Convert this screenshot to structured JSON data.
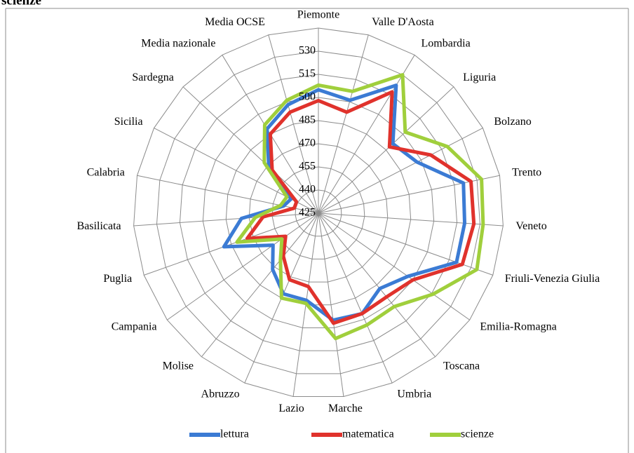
{
  "chart_data": {
    "type": "radar",
    "title": "scienze",
    "categories": [
      "Piemonte",
      "Valle D'Aosta",
      "Lombardia",
      "Liguria",
      "Bolzano",
      "Trento",
      "Veneto",
      "Friuli-Venezia Giulia",
      "Emilia-Romagna",
      "Toscana",
      "Umbria",
      "Marche",
      "Lazio",
      "Abruzzo",
      "Molise",
      "Campania",
      "Puglia",
      "Basilicata",
      "Calabria",
      "Sicilia",
      "Sardegna",
      "Media nazionale",
      "Media OCSE"
    ],
    "series": [
      {
        "name": "lettura",
        "color": "#3b7bd4",
        "values": [
          505,
          501,
          522,
          491,
          497,
          521,
          520,
          520,
          496,
          488,
          496,
          495,
          482,
          482,
          472,
          461,
          490,
          475,
          448,
          445,
          469,
          489,
          498
        ]
      },
      {
        "name": "matematica",
        "color": "#e0322c",
        "values": [
          498,
          493,
          517,
          488,
          507,
          526,
          526,
          524,
          500,
          495,
          496,
          497,
          473,
          472,
          461,
          451,
          474,
          461,
          441,
          441,
          466,
          485,
          493
        ]
      },
      {
        "name": "scienze",
        "color": "#a0cf3c",
        "values": [
          508,
          507,
          530,
          502,
          519,
          533,
          532,
          534,
          516,
          503,
          504,
          507,
          484,
          485,
          464,
          454,
          481,
          466,
          450,
          448,
          473,
          492,
          501
        ]
      }
    ],
    "ylim": [
      425,
      545
    ],
    "yticks": [
      425,
      440,
      455,
      470,
      485,
      500,
      515,
      530
    ],
    "grid": true,
    "legend": "bottom"
  }
}
